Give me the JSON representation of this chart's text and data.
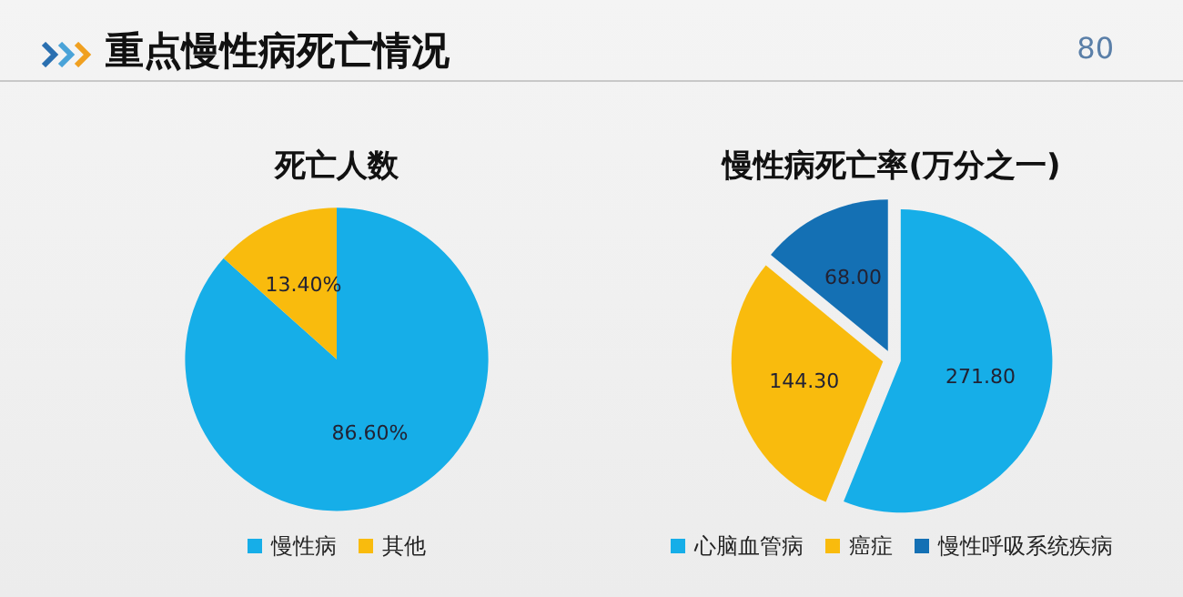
{
  "chart_data": [
    {
      "type": "pie",
      "title": "死亡人数",
      "annotations": [
        "重点慢性病死亡情况",
        "80"
      ],
      "categories": [
        "慢性病",
        "其他"
      ],
      "values": [
        86.6,
        13.4
      ],
      "colors": [
        "#16aee8",
        "#f9bb0d"
      ],
      "value_labels": [
        "86.60%",
        "13.40%"
      ],
      "legend": "bottom"
    },
    {
      "type": "pie",
      "title": "慢性病死亡率(万分之一)",
      "categories": [
        "心脑血管病",
        "癌症",
        "慢性呼吸系统疾病"
      ],
      "values": [
        271.8,
        144.3,
        68.0
      ],
      "colors": [
        "#16aee8",
        "#f9bb0d",
        "#1470b4"
      ],
      "value_labels": [
        "271.80",
        "144.30",
        "68.00"
      ],
      "legend": "bottom"
    }
  ]
}
